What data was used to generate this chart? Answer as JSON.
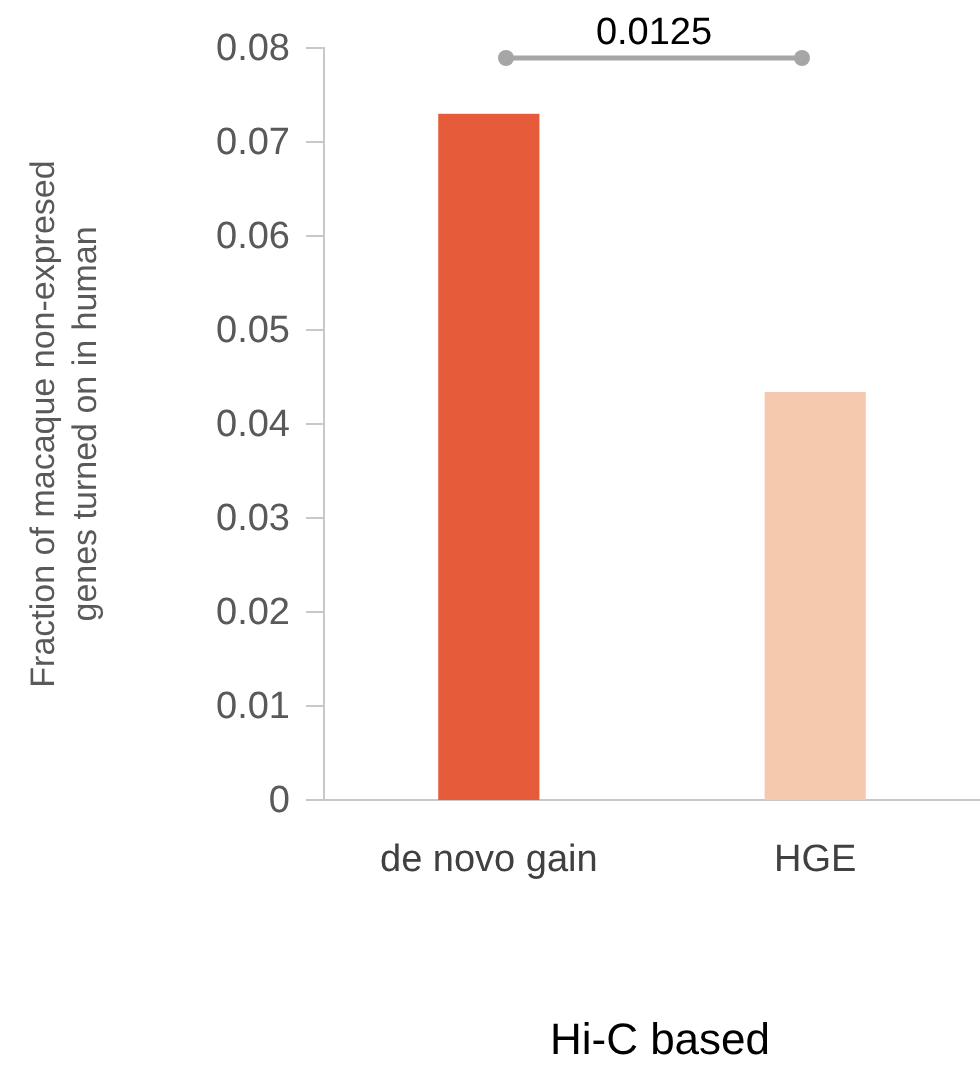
{
  "chart_data": {
    "type": "bar",
    "categories": [
      "de novo gain",
      "HGE"
    ],
    "values": [
      0.073,
      0.0434
    ],
    "colors": [
      "#e65c3a",
      "#f5c9ad"
    ],
    "ylabel": "Fraction of macaque non-expresed genes turned on in human",
    "xlabel": "Hi-C based",
    "ylim": [
      0,
      0.08
    ],
    "yticks": [
      0,
      0.01,
      0.02,
      0.03,
      0.04,
      0.05,
      0.06,
      0.07,
      0.08
    ],
    "grid": false,
    "annotations": [
      "0.0125"
    ]
  }
}
